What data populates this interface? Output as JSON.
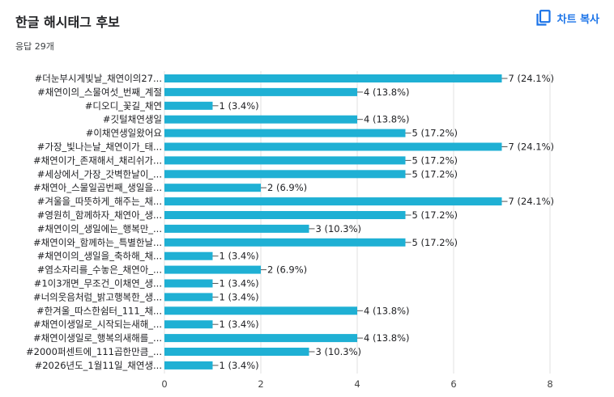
{
  "header": {
    "title": "한글 해시태그 후보",
    "subtitle": "응답 29개",
    "copy_label": "차트 복사",
    "copy_icon": "copy-icon"
  },
  "colors": {
    "bar": "#1fb0d4",
    "accent": "#1a73e8",
    "grid": "#e0e0e0"
  },
  "chart_data": {
    "type": "bar",
    "orientation": "horizontal",
    "title": "한글 해시태그 후보",
    "xlim": [
      0,
      8
    ],
    "xticks": [
      0,
      2,
      4,
      6,
      8
    ],
    "grid": true,
    "categories": [
      "#더눈부시게빛날_채연이의27...",
      "#채연이의_스물여섯_번째_계절",
      "#디오디_꽃길_채연",
      "#깃털채연생일",
      "#이채연생일왔어요",
      "#가장_빛나는날_채연이가_태...",
      "#채연이가_존재해서_채리쉬가...",
      "#세상에서_가장_갓벽한날이_...",
      "#채연아_스물일곱번째_생일을...",
      "#겨울을_따뜻하게_해주는_채...",
      "#영원히_함께하자_채연아_생...",
      "#채연이의_생일에는_행복만_...",
      "#채연이와_함께하는_특별한날...",
      "#채연이의_생일을_축하해_채...",
      "#염소자리를_수놓은_채연아_...",
      "#1이3개면_무조건_이채연_생...",
      "#너의웃음처럼_밝고행복한_생...",
      "#한겨울_따스한쉼터_111_채...",
      "#채연이생일로_시작되는새해_...",
      "#채연이생일로_행복의새해를_...",
      "#2000퍼센트에_111곱한만큼_...",
      "#2026년도_1월11일_채연생..."
    ],
    "values": [
      7,
      4,
      1,
      4,
      5,
      7,
      5,
      5,
      2,
      7,
      5,
      3,
      5,
      1,
      2,
      1,
      1,
      4,
      1,
      4,
      3,
      1
    ],
    "value_labels": [
      "7 (24.1%)",
      "4 (13.8%)",
      "1 (3.4%)",
      "4 (13.8%)",
      "5 (17.2%)",
      "7 (24.1%)",
      "5 (17.2%)",
      "5 (17.2%)",
      "2 (6.9%)",
      "7 (24.1%)",
      "5 (17.2%)",
      "3 (10.3%)",
      "5 (17.2%)",
      "1 (3.4%)",
      "2 (6.9%)",
      "1 (3.4%)",
      "1 (3.4%)",
      "4 (13.8%)",
      "1 (3.4%)",
      "4 (13.8%)",
      "3 (10.3%)",
      "1 (3.4%)"
    ]
  }
}
